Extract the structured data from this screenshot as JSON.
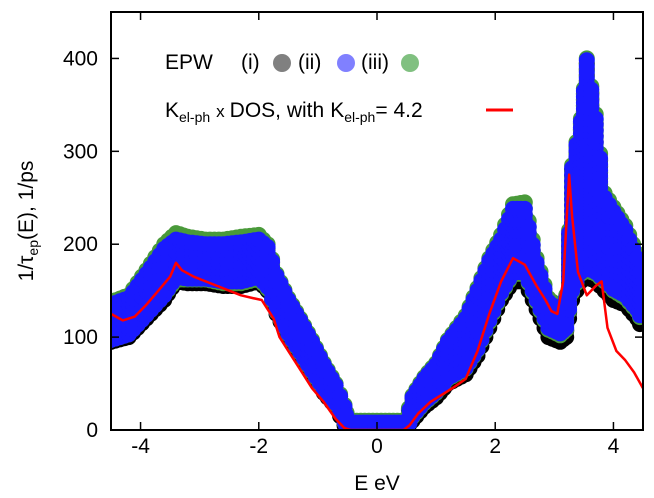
{
  "chart_data": {
    "type": "scatter",
    "title": "",
    "xlabel": "E eV",
    "ylabel_main": "1/τ",
    "ylabel_sub": "ep",
    "ylabel_rest": "(E), 1/ps",
    "xlim": [
      -4.5,
      4.5
    ],
    "ylim": [
      0,
      450
    ],
    "xticks": [
      -4,
      -2,
      0,
      2,
      4
    ],
    "yticks": [
      0,
      100,
      200,
      300,
      400
    ],
    "grid": false,
    "legend_position": "top-center",
    "legend": {
      "epw_label": "EPW",
      "epw_items": [
        {
          "label": "(i)",
          "color": "#808080"
        },
        {
          "label": "(ii)",
          "color": "#8080ff"
        },
        {
          "label": "(iii)",
          "color": "#80c080"
        }
      ],
      "model": {
        "k": "K",
        "k_sub": "el-ph",
        "times": "x",
        "dos": "DOS, with",
        "k2": "K",
        "k2_sub": "el-ph",
        "value": "= 4.2",
        "color": "#ff0000"
      }
    },
    "series": [
      {
        "name": "EPW (i)",
        "color": "#000000",
        "band": [
          [
            -4.5,
            95,
            133
          ],
          [
            -4.2,
            100,
            140
          ],
          [
            -3.9,
            120,
            165
          ],
          [
            -3.6,
            140,
            190
          ],
          [
            -3.4,
            160,
            200
          ],
          [
            -3.2,
            158,
            198
          ],
          [
            -2.9,
            158,
            198
          ],
          [
            -2.6,
            155,
            195
          ],
          [
            -2.3,
            155,
            198
          ],
          [
            -2.0,
            160,
            200
          ],
          [
            -1.85,
            150,
            195
          ],
          [
            -1.7,
            125,
            165
          ],
          [
            -1.5,
            100,
            140
          ],
          [
            -1.3,
            80,
            118
          ],
          [
            -1.1,
            60,
            95
          ],
          [
            -0.9,
            40,
            70
          ],
          [
            -0.7,
            25,
            48
          ],
          [
            -0.55,
            5,
            25
          ],
          [
            -0.48,
            0,
            8
          ],
          [
            0.48,
            0,
            8
          ],
          [
            0.6,
            10,
            35
          ],
          [
            0.8,
            25,
            55
          ],
          [
            1.0,
            35,
            70
          ],
          [
            1.2,
            50,
            95
          ],
          [
            1.5,
            60,
            120
          ],
          [
            1.7,
            80,
            150
          ],
          [
            1.9,
            110,
            180
          ],
          [
            2.1,
            140,
            200
          ],
          [
            2.3,
            160,
            230
          ],
          [
            2.5,
            160,
            230
          ],
          [
            2.7,
            130,
            175
          ],
          [
            2.9,
            100,
            135
          ],
          [
            3.1,
            95,
            125
          ],
          [
            3.2,
            100,
            140
          ],
          [
            3.3,
            140,
            280
          ],
          [
            3.45,
            160,
            330
          ],
          [
            3.55,
            165,
            395
          ],
          [
            3.7,
            160,
            330
          ],
          [
            3.85,
            150,
            250
          ],
          [
            4.0,
            140,
            230
          ],
          [
            4.2,
            135,
            210
          ],
          [
            4.4,
            120,
            180
          ],
          [
            4.5,
            108,
            150
          ]
        ]
      },
      {
        "name": "EPW (iii)",
        "color": "#4a9a3a",
        "band": [
          [
            -4.5,
            97,
            138
          ],
          [
            -4.2,
            103,
            145
          ],
          [
            -3.9,
            124,
            172
          ],
          [
            -3.6,
            145,
            200
          ],
          [
            -3.4,
            162,
            212
          ],
          [
            -3.2,
            162,
            208
          ],
          [
            -2.9,
            162,
            205
          ],
          [
            -2.6,
            158,
            205
          ],
          [
            -2.3,
            158,
            208
          ],
          [
            -2.0,
            163,
            210
          ],
          [
            -1.85,
            152,
            200
          ],
          [
            -1.7,
            127,
            168
          ],
          [
            -1.5,
            103,
            142
          ],
          [
            -1.3,
            83,
            120
          ],
          [
            -1.1,
            63,
            97
          ],
          [
            -0.9,
            43,
            72
          ],
          [
            -0.7,
            28,
            50
          ],
          [
            -0.55,
            8,
            27
          ],
          [
            -0.48,
            0,
            10
          ],
          [
            0.48,
            0,
            10
          ],
          [
            0.6,
            14,
            37
          ],
          [
            0.8,
            29,
            57
          ],
          [
            1.0,
            40,
            72
          ],
          [
            1.2,
            55,
            97
          ],
          [
            1.5,
            66,
            123
          ],
          [
            1.7,
            86,
            153
          ],
          [
            1.9,
            116,
            185
          ],
          [
            2.1,
            146,
            210
          ],
          [
            2.3,
            168,
            243
          ],
          [
            2.5,
            168,
            245
          ],
          [
            2.7,
            138,
            185
          ],
          [
            2.9,
            108,
            142
          ],
          [
            3.1,
            102,
            130
          ],
          [
            3.2,
            108,
            145
          ],
          [
            3.3,
            148,
            285
          ],
          [
            3.45,
            168,
            335
          ],
          [
            3.55,
            172,
            400
          ],
          [
            3.7,
            168,
            340
          ],
          [
            3.85,
            160,
            255
          ],
          [
            4.0,
            150,
            240
          ],
          [
            4.2,
            142,
            220
          ],
          [
            4.4,
            128,
            190
          ],
          [
            4.5,
            115,
            160
          ]
        ]
      },
      {
        "name": "EPW (ii)",
        "color": "#1a1aff",
        "band": [
          [
            -4.5,
            97,
            135
          ],
          [
            -4.2,
            103,
            142
          ],
          [
            -3.9,
            124,
            168
          ],
          [
            -3.6,
            145,
            195
          ],
          [
            -3.4,
            165,
            205
          ],
          [
            -3.2,
            163,
            202
          ],
          [
            -2.9,
            163,
            200
          ],
          [
            -2.6,
            160,
            200
          ],
          [
            -2.3,
            160,
            202
          ],
          [
            -2.0,
            165,
            205
          ],
          [
            -1.85,
            154,
            197
          ],
          [
            -1.7,
            128,
            166
          ],
          [
            -1.5,
            104,
            140
          ],
          [
            -1.3,
            84,
            118
          ],
          [
            -1.1,
            64,
            95
          ],
          [
            -0.9,
            44,
            70
          ],
          [
            -0.7,
            29,
            48
          ],
          [
            -0.55,
            9,
            25
          ],
          [
            -0.5,
            0,
            8
          ],
          [
            0.5,
            0,
            8
          ],
          [
            0.6,
            15,
            35
          ],
          [
            0.8,
            30,
            55
          ],
          [
            1.0,
            41,
            70
          ],
          [
            1.2,
            56,
            95
          ],
          [
            1.5,
            67,
            120
          ],
          [
            1.7,
            87,
            150
          ],
          [
            1.9,
            118,
            182
          ],
          [
            2.1,
            148,
            205
          ],
          [
            2.3,
            170,
            238
          ],
          [
            2.5,
            170,
            238
          ],
          [
            2.7,
            140,
            180
          ],
          [
            2.9,
            110,
            138
          ],
          [
            3.1,
            104,
            127
          ],
          [
            3.2,
            110,
            142
          ],
          [
            3.3,
            150,
            282
          ],
          [
            3.45,
            170,
            332
          ],
          [
            3.55,
            175,
            398
          ],
          [
            3.7,
            170,
            335
          ],
          [
            3.85,
            162,
            250
          ],
          [
            4.0,
            152,
            235
          ],
          [
            4.2,
            145,
            215
          ],
          [
            4.4,
            130,
            185
          ],
          [
            4.5,
            117,
            155
          ]
        ]
      },
      {
        "name": "Kel-ph x DOS",
        "color": "#ff0000",
        "line": [
          [
            -4.5,
            125
          ],
          [
            -4.3,
            118
          ],
          [
            -4.1,
            122
          ],
          [
            -3.9,
            135
          ],
          [
            -3.7,
            150
          ],
          [
            -3.5,
            165
          ],
          [
            -3.4,
            180
          ],
          [
            -3.3,
            172
          ],
          [
            -3.1,
            165
          ],
          [
            -2.9,
            160
          ],
          [
            -2.7,
            155
          ],
          [
            -2.5,
            150
          ],
          [
            -2.3,
            145
          ],
          [
            -2.1,
            142
          ],
          [
            -1.95,
            140
          ],
          [
            -1.85,
            130
          ],
          [
            -1.75,
            120
          ],
          [
            -1.65,
            100
          ],
          [
            -1.5,
            85
          ],
          [
            -1.3,
            65
          ],
          [
            -1.1,
            45
          ],
          [
            -0.9,
            30
          ],
          [
            -0.7,
            12
          ],
          [
            -0.55,
            2
          ],
          [
            -0.45,
            0
          ],
          [
            0.45,
            0
          ],
          [
            0.55,
            5
          ],
          [
            0.7,
            18
          ],
          [
            0.9,
            30
          ],
          [
            1.1,
            38
          ],
          [
            1.3,
            46
          ],
          [
            1.5,
            55
          ],
          [
            1.7,
            85
          ],
          [
            1.9,
            125
          ],
          [
            2.1,
            160
          ],
          [
            2.3,
            185
          ],
          [
            2.5,
            178
          ],
          [
            2.7,
            155
          ],
          [
            2.85,
            140
          ],
          [
            2.95,
            128
          ],
          [
            3.05,
            125
          ],
          [
            3.15,
            160
          ],
          [
            3.25,
            275
          ],
          [
            3.3,
            230
          ],
          [
            3.4,
            170
          ],
          [
            3.55,
            145
          ],
          [
            3.7,
            155
          ],
          [
            3.8,
            160
          ],
          [
            3.9,
            110
          ],
          [
            4.05,
            85
          ],
          [
            4.2,
            75
          ],
          [
            4.35,
            62
          ],
          [
            4.5,
            45
          ]
        ]
      }
    ]
  }
}
